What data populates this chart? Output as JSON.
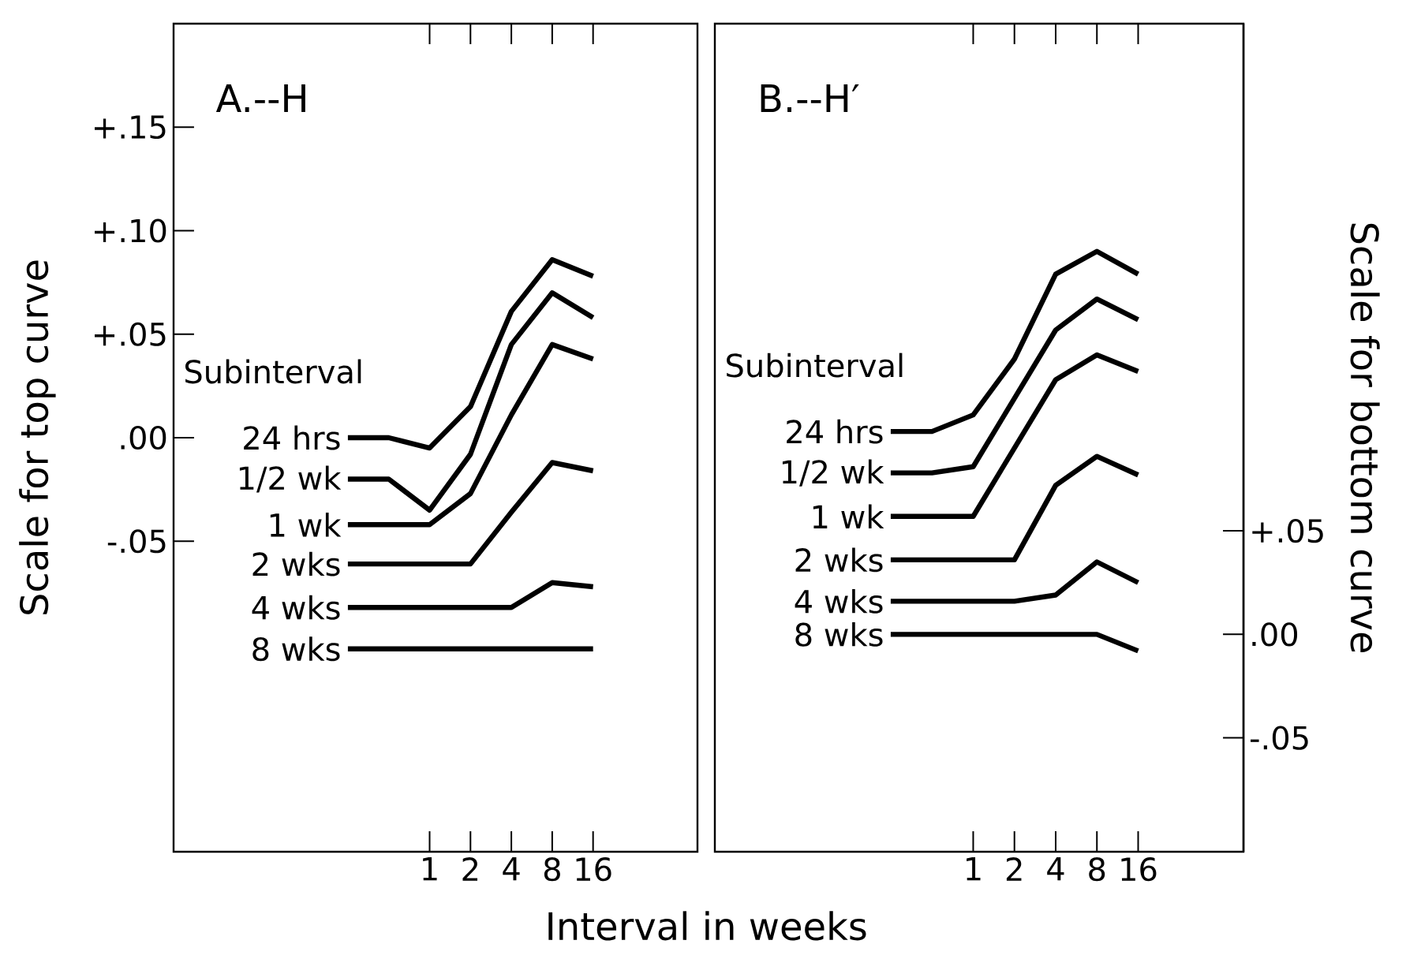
{
  "chart_data": [
    {
      "type": "line",
      "title": "A.--H",
      "xlabel": "Interval in weeks",
      "ylabel": "Scale for top curve",
      "legend_title": "Subinterval",
      "legend": "left",
      "log": "x",
      "xlim": [
        0.013,
        94
      ],
      "xticks": [
        1,
        2,
        4,
        8,
        16
      ],
      "ylim": [
        -0.2,
        0.2
      ],
      "yticks": [
        {
          "value": 0.15,
          "label": "+.15"
        },
        {
          "value": 0.1,
          "label": "+.10"
        },
        {
          "value": 0.05,
          "label": "+.05"
        },
        {
          "value": 0,
          "label": ".00"
        },
        {
          "value": -0.05,
          "label": "-.05"
        }
      ],
      "x": [
        0.25,
        0.5,
        1,
        2,
        4,
        8,
        16
      ],
      "series": [
        {
          "name": "24 hrs",
          "color": "#000000",
          "values": [
            0,
            0,
            -0.005,
            0.015,
            0.061,
            0.086,
            0.078
          ]
        },
        {
          "name": "1/2 wk",
          "color": "#000000",
          "values": [
            -0.02,
            -0.02,
            -0.035,
            -0.008,
            0.045,
            0.07,
            0.058
          ]
        },
        {
          "name": "1 wk",
          "color": "#000000",
          "values": [
            -0.042,
            -0.042,
            -0.042,
            -0.027,
            0.011,
            0.045,
            0.038
          ]
        },
        {
          "name": "2 wks",
          "color": "#000000",
          "values": [
            -0.061,
            -0.061,
            -0.061,
            -0.061,
            -0.036,
            -0.012,
            -0.016
          ]
        },
        {
          "name": "4 wks",
          "color": "#000000",
          "values": [
            -0.082,
            -0.082,
            -0.082,
            -0.082,
            -0.082,
            -0.07,
            -0.072
          ]
        },
        {
          "name": "8 wks",
          "color": "#000000",
          "values": [
            -0.102,
            -0.102,
            -0.102,
            -0.102,
            -0.102,
            -0.102,
            -0.102
          ]
        }
      ]
    },
    {
      "type": "line",
      "title": "B.--H′",
      "y2label": "Scale for bottom curve",
      "legend_title": "Subinterval",
      "legend": "left",
      "log": "x",
      "xlim": [
        0.013,
        94
      ],
      "xticks": [
        1,
        2,
        4,
        8,
        16
      ],
      "y2lim": [
        -0.105,
        0.295
      ],
      "y2ticks": [
        {
          "value": 0.05,
          "label": "+.05"
        },
        {
          "value": 0,
          "label": ".00"
        },
        {
          "value": -0.05,
          "label": "-.05"
        }
      ],
      "x": [
        0.25,
        0.5,
        1,
        2,
        4,
        8,
        16
      ],
      "series": [
        {
          "name": "24 hrs",
          "color": "#000000",
          "axis": "y2",
          "values": [
            0.098,
            0.098,
            0.106,
            0.133,
            0.174,
            0.185,
            0.174
          ]
        },
        {
          "name": "1/2 wk",
          "color": "#000000",
          "axis": "y2",
          "values": [
            0.078,
            0.078,
            0.081,
            0.114,
            0.147,
            0.162,
            0.152
          ]
        },
        {
          "name": "1 wk",
          "color": "#000000",
          "axis": "y2",
          "values": [
            0.057,
            0.057,
            0.057,
            0.09,
            0.123,
            0.135,
            0.127
          ]
        },
        {
          "name": "2 wks",
          "color": "#000000",
          "axis": "y2",
          "values": [
            0.036,
            0.036,
            0.036,
            0.036,
            0.072,
            0.086,
            0.077
          ]
        },
        {
          "name": "4 wks",
          "color": "#000000",
          "axis": "y2",
          "values": [
            0.016,
            0.016,
            0.016,
            0.016,
            0.019,
            0.035,
            0.025
          ]
        },
        {
          "name": "8 wks",
          "color": "#000000",
          "axis": "y2",
          "values": [
            0,
            0,
            0,
            0,
            0,
            0,
            -0.008
          ]
        }
      ]
    }
  ]
}
